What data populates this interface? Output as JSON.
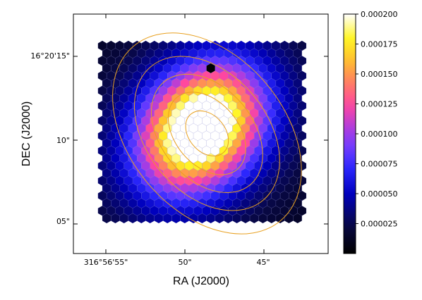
{
  "chart_data": {
    "type": "heatmap",
    "grid": "hexagonal",
    "title": "",
    "xlabel": "RA (J2000)",
    "ylabel": "DEC (J2000)",
    "x_ticks": [
      {
        "label": "316°56'55\"",
        "ra_arcsec_offset": 55
      },
      {
        "label": "50\"",
        "ra_arcsec_offset": 50
      },
      {
        "label": "45\"",
        "ra_arcsec_offset": 45
      }
    ],
    "y_ticks": [
      {
        "label": "16°20'15\"",
        "dec_arcsec_offset": 15
      },
      {
        "label": "10\"",
        "dec_arcsec_offset": 10
      },
      {
        "label": "05\"",
        "dec_arcsec_offset": 5
      }
    ],
    "colorbar": {
      "colormap": "gnuplot2",
      "range": [
        0,
        0.0002
      ],
      "tick_values": [
        2.5e-05,
        5e-05,
        7.5e-05,
        0.0001,
        0.000125,
        0.00015,
        0.000175,
        0.0002
      ],
      "tick_labels": [
        "0.000025",
        "0.000050",
        "0.000075",
        "0.000100",
        "0.000125",
        "0.000150",
        "0.000175",
        "0.000200"
      ]
    },
    "source_model": {
      "peak_value": 0.000235,
      "center_ra_offset": 49.0,
      "center_dec_offset": 10.7,
      "background_value": 8e-06
    },
    "contours": {
      "color": "#e8a020",
      "center_ra_offset": 48.6,
      "center_dec_offset": 10.4,
      "position_angle_deg": 40,
      "semi_axes_arcsec": [
        [
          1.5,
          1.15
        ],
        [
          2.8,
          2.0
        ],
        [
          4.0,
          2.9
        ],
        [
          5.2,
          3.8
        ],
        [
          6.8,
          4.9
        ]
      ]
    },
    "masked_cell": {
      "ra_offset": 48.5,
      "dec_offset": 14.4
    }
  }
}
